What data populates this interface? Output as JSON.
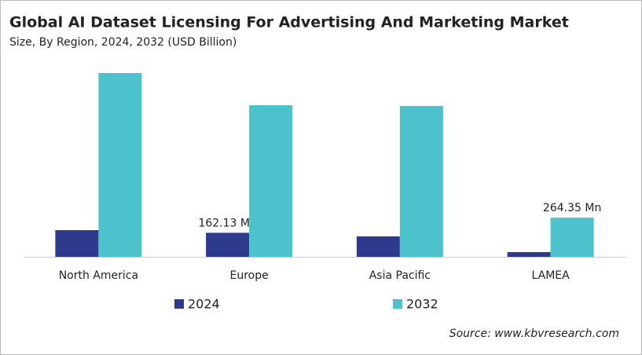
{
  "chart_data": {
    "type": "bar",
    "title": "Global AI Dataset Licensing For Advertising And Marketing Market",
    "subtitle": "Size, By Region, 2024, 2032 (USD Billion)",
    "categories": [
      "North America",
      "Europe",
      "Asia Pacific",
      "LAMEA"
    ],
    "series": [
      {
        "name": "2024",
        "color": "#2e3a8c",
        "values": [
          180,
          162.13,
          138,
          32
        ],
        "value_labels": [
          null,
          "162.13 Mn",
          null,
          null
        ]
      },
      {
        "name": "2032",
        "color": "#4cc3cc",
        "values": [
          1240,
          1023,
          1018,
          264.35
        ],
        "value_labels": [
          null,
          null,
          null,
          "264.35 Mn"
        ]
      }
    ],
    "source": "Source: www.kbvresearch.com"
  }
}
